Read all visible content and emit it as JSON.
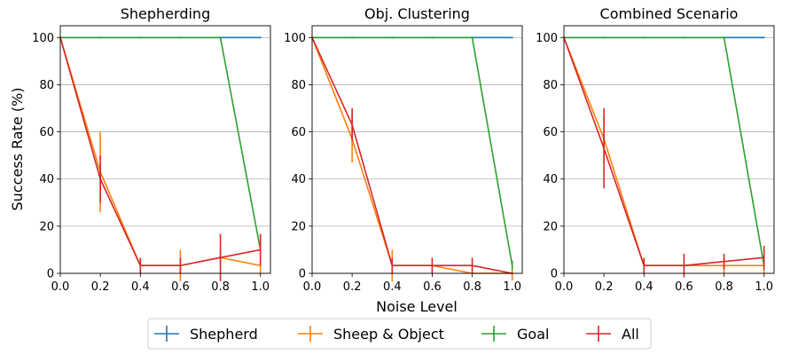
{
  "figure": {
    "ylabel": "Success Rate (%)",
    "xlabel": "Noise Level"
  },
  "legend": {
    "items": [
      {
        "label": "Shepherd",
        "color": "#1f77b4"
      },
      {
        "label": "Sheep & Object",
        "color": "#ff7f0e"
      },
      {
        "label": "Goal",
        "color": "#2ca02c"
      },
      {
        "label": "All",
        "color": "#d62728"
      }
    ]
  },
  "chart_data": [
    {
      "type": "line",
      "title": "Shepherding",
      "x": [
        0.0,
        0.2,
        0.4,
        0.6,
        0.8,
        1.0
      ],
      "xlim": [
        0.0,
        1.05
      ],
      "ylim": [
        0,
        105
      ],
      "xticks": [
        "0.0",
        "0.2",
        "0.4",
        "0.6",
        "0.8",
        "1.0"
      ],
      "yticks": [
        "0",
        "20",
        "40",
        "60",
        "80",
        "100"
      ],
      "grid": "y",
      "series": [
        {
          "name": "Shepherd",
          "color": "#1f77b4",
          "values": [
            100,
            100,
            100,
            100,
            100,
            100
          ],
          "errors": [
            0,
            0,
            0,
            0,
            0,
            0
          ]
        },
        {
          "name": "Sheep & Object",
          "color": "#ff7f0e",
          "values": [
            100,
            43,
            3.3,
            3.3,
            6.7,
            3.3
          ],
          "errors": [
            0,
            17,
            3.3,
            6.7,
            3.3,
            3.3
          ]
        },
        {
          "name": "Goal",
          "color": "#2ca02c",
          "values": [
            100,
            100,
            100,
            100,
            100,
            10
          ],
          "errors": [
            0,
            0,
            0,
            0,
            0,
            3
          ]
        },
        {
          "name": "All",
          "color": "#d62728",
          "values": [
            100,
            40,
            3.3,
            3.3,
            6.7,
            10
          ],
          "errors": [
            0,
            10,
            3.3,
            3.3,
            10,
            6.7
          ]
        }
      ]
    },
    {
      "type": "line",
      "title": "Obj. Clustering",
      "x": [
        0.0,
        0.2,
        0.4,
        0.6,
        0.8,
        1.0
      ],
      "xlim": [
        0.0,
        1.05
      ],
      "ylim": [
        0,
        105
      ],
      "xticks": [
        "0.0",
        "0.2",
        "0.4",
        "0.6",
        "0.8",
        "1.0"
      ],
      "yticks": [
        "0",
        "20",
        "40",
        "60",
        "80",
        "100"
      ],
      "grid": "y",
      "series": [
        {
          "name": "Shepherd",
          "color": "#1f77b4",
          "values": [
            100,
            100,
            100,
            100,
            100,
            100
          ],
          "errors": [
            0,
            0,
            0,
            0,
            0,
            0
          ]
        },
        {
          "name": "Sheep & Object",
          "color": "#ff7f0e",
          "values": [
            100,
            57,
            3.3,
            3.3,
            0,
            0
          ],
          "errors": [
            0,
            10,
            6.7,
            0,
            0,
            3
          ]
        },
        {
          "name": "Goal",
          "color": "#2ca02c",
          "values": [
            100,
            100,
            100,
            100,
            100,
            3.3
          ],
          "errors": [
            0,
            0,
            0,
            0,
            0,
            2
          ]
        },
        {
          "name": "All",
          "color": "#d62728",
          "values": [
            100,
            63,
            3.3,
            3.3,
            3.3,
            0
          ],
          "errors": [
            0,
            7,
            3.3,
            3.3,
            3.3,
            0
          ]
        }
      ]
    },
    {
      "type": "line",
      "title": "Combined Scenario",
      "x": [
        0.0,
        0.2,
        0.4,
        0.6,
        0.8,
        1.0
      ],
      "xlim": [
        0.0,
        1.05
      ],
      "ylim": [
        0,
        105
      ],
      "xticks": [
        "0.0",
        "0.2",
        "0.4",
        "0.6",
        "0.8",
        "1.0"
      ],
      "yticks": [
        "0",
        "20",
        "40",
        "60",
        "80",
        "100"
      ],
      "grid": "y",
      "series": [
        {
          "name": "Shepherd",
          "color": "#1f77b4",
          "values": [
            100,
            100,
            100,
            100,
            100,
            100
          ],
          "errors": [
            0,
            0,
            0,
            0,
            0,
            0
          ]
        },
        {
          "name": "Sheep & Object",
          "color": "#ff7f0e",
          "values": [
            100,
            57,
            3.3,
            3.3,
            3.3,
            3.3
          ],
          "errors": [
            0,
            10,
            3.3,
            0,
            3.3,
            3.3
          ]
        },
        {
          "name": "Goal",
          "color": "#2ca02c",
          "values": [
            100,
            100,
            100,
            100,
            100,
            3.3
          ],
          "errors": [
            0,
            0,
            0,
            0,
            0,
            2
          ]
        },
        {
          "name": "All",
          "color": "#d62728",
          "values": [
            100,
            53,
            3.3,
            3.3,
            5,
            6.7
          ],
          "errors": [
            0,
            17,
            3.3,
            5,
            3.3,
            5
          ]
        }
      ]
    }
  ]
}
